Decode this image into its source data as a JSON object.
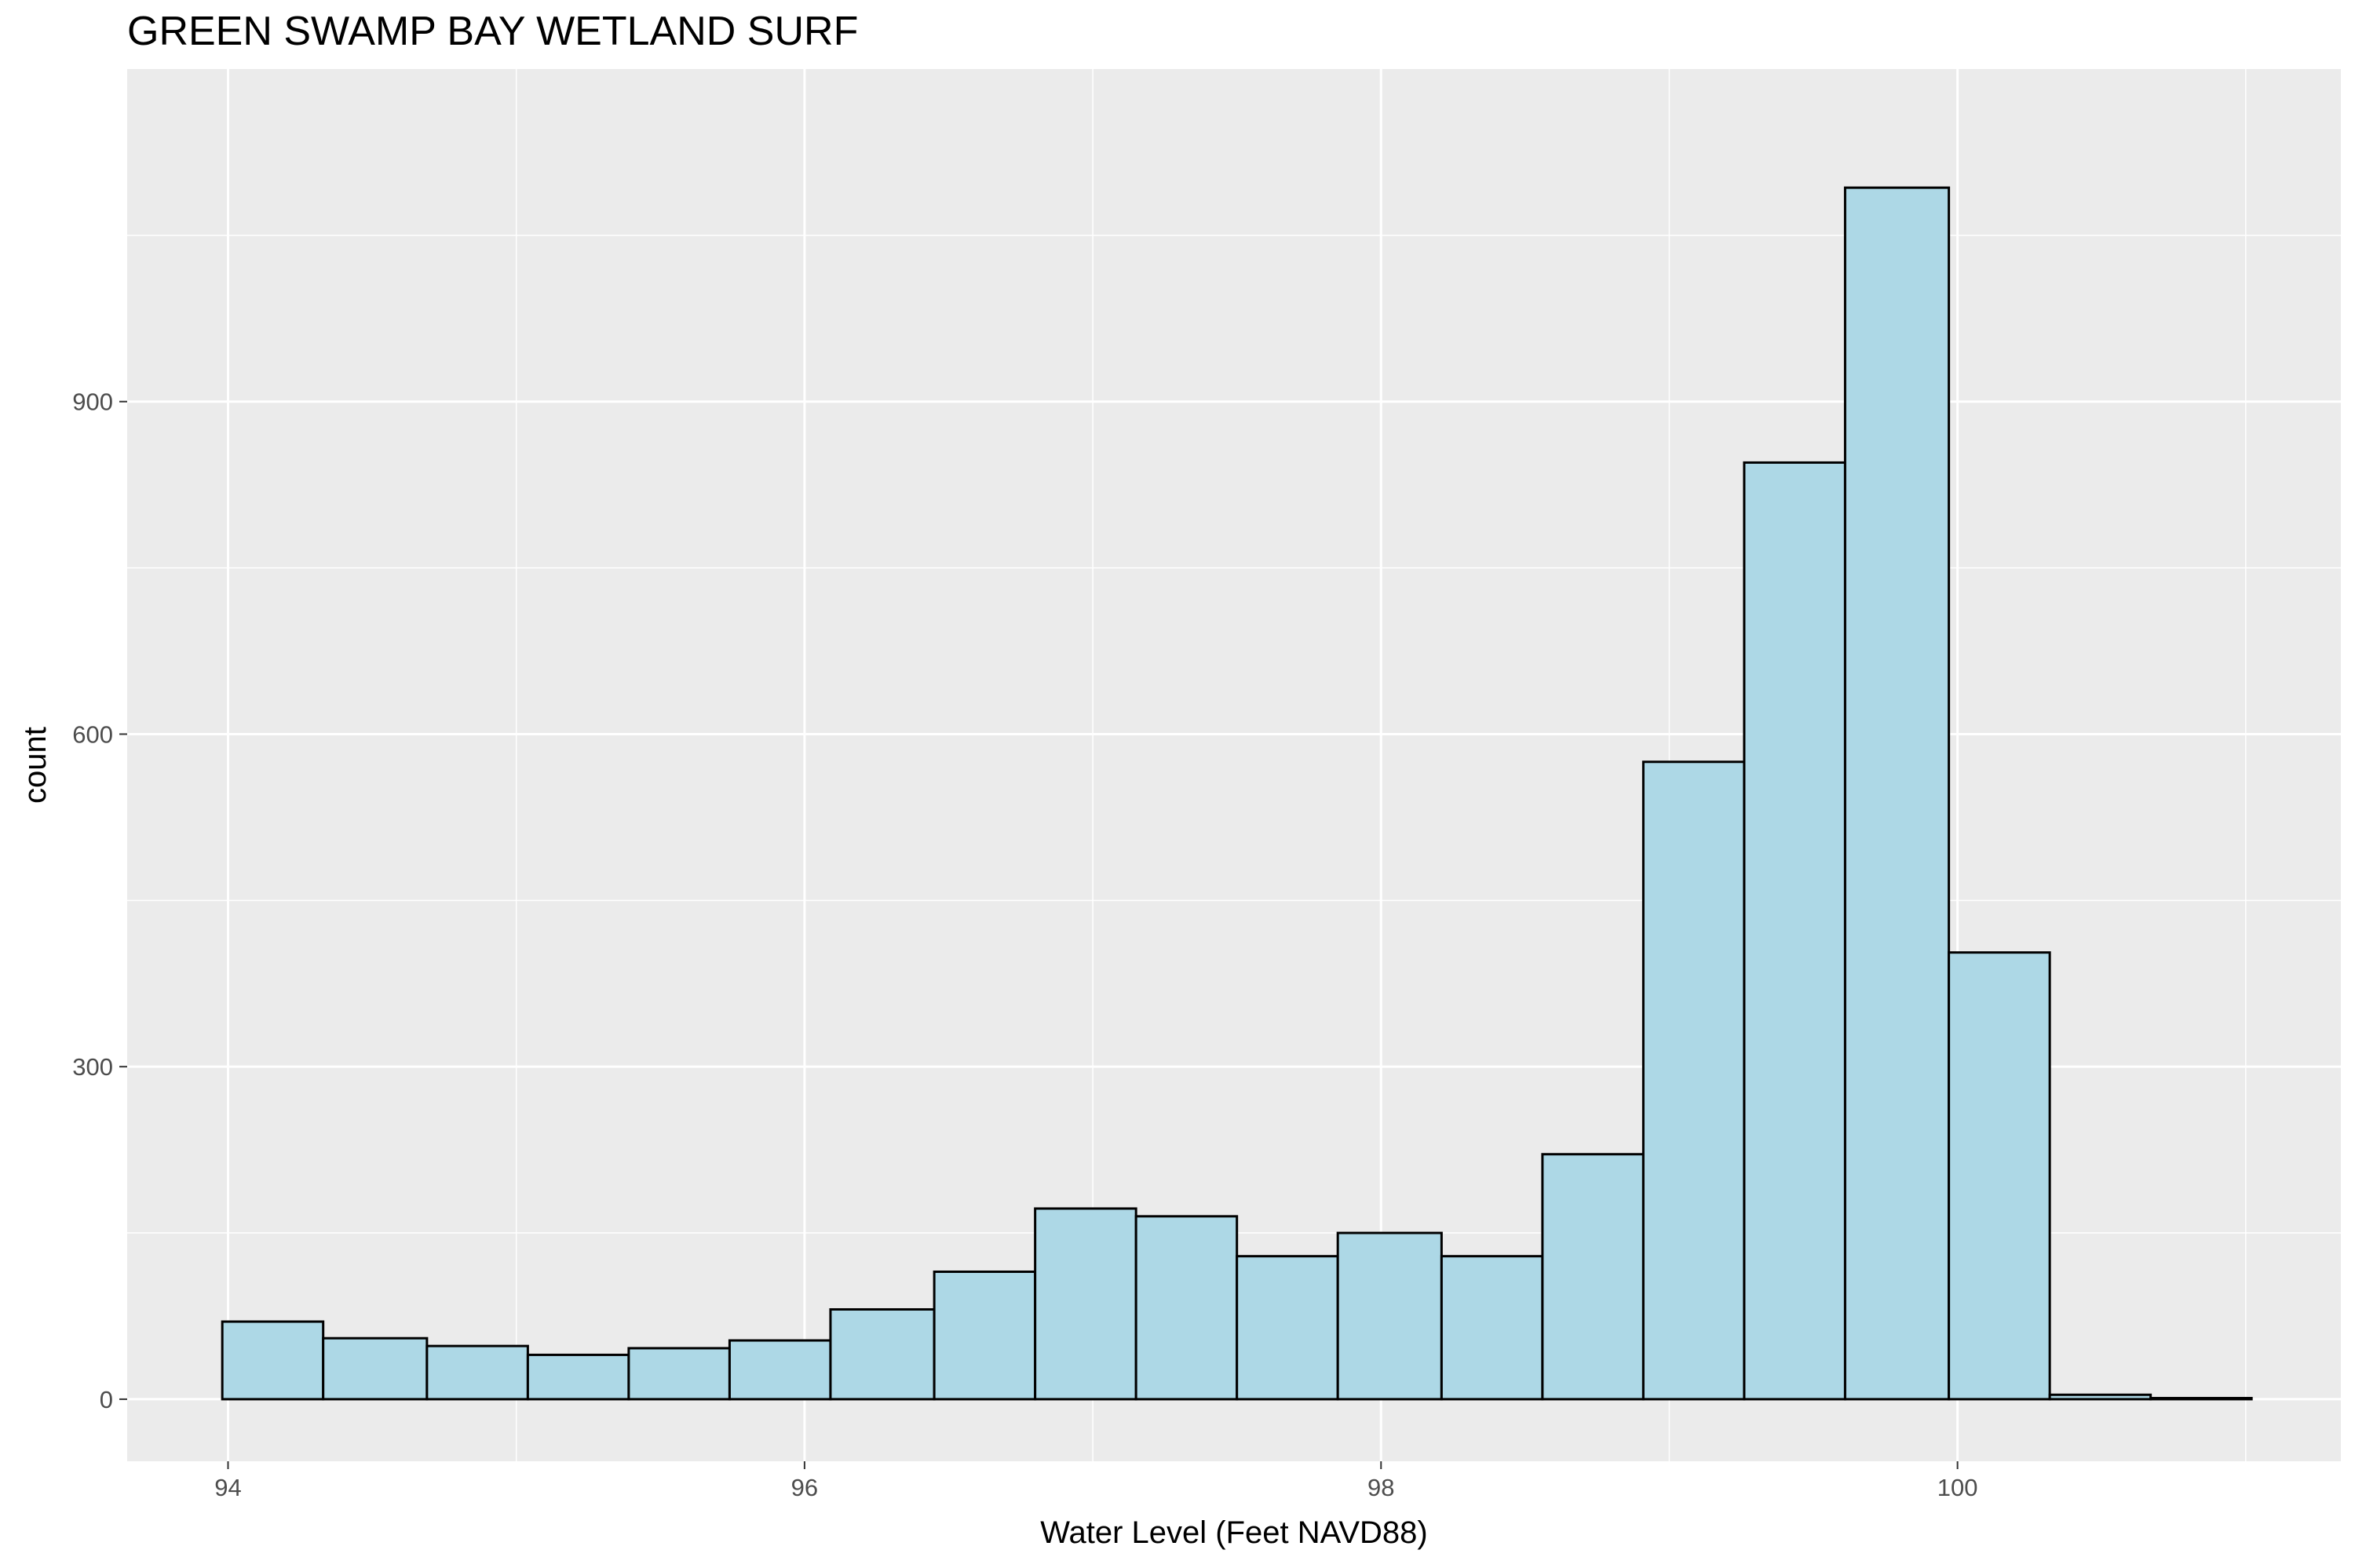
{
  "chart_data": {
    "type": "bar",
    "title": "GREEN SWAMP BAY WETLAND SURF",
    "xlabel": "Water Level (Feet NAVD88)",
    "ylabel": "count",
    "xlim": [
      93.65,
      101.33
    ],
    "ylim": [
      -56,
      1200
    ],
    "x_ticks": [
      94,
      96,
      98,
      100
    ],
    "x_tick_labels": [
      "94",
      "96",
      "98",
      "100"
    ],
    "y_ticks": [
      0,
      300,
      600,
      900
    ],
    "y_tick_labels": [
      "0",
      "300",
      "600",
      "900"
    ],
    "grid": true,
    "bins": [
      {
        "x0": 93.98,
        "x1": 94.33,
        "count": 70
      },
      {
        "x0": 94.33,
        "x1": 94.69,
        "count": 55
      },
      {
        "x0": 94.69,
        "x1": 95.04,
        "count": 48
      },
      {
        "x0": 95.04,
        "x1": 95.39,
        "count": 40
      },
      {
        "x0": 95.39,
        "x1": 95.74,
        "count": 46
      },
      {
        "x0": 95.74,
        "x1": 96.09,
        "count": 53
      },
      {
        "x0": 96.09,
        "x1": 96.45,
        "count": 81
      },
      {
        "x0": 96.45,
        "x1": 96.8,
        "count": 115
      },
      {
        "x0": 96.8,
        "x1": 97.15,
        "count": 172
      },
      {
        "x0": 97.15,
        "x1": 97.5,
        "count": 165
      },
      {
        "x0": 97.5,
        "x1": 97.85,
        "count": 129
      },
      {
        "x0": 97.85,
        "x1": 98.21,
        "count": 150
      },
      {
        "x0": 98.21,
        "x1": 98.56,
        "count": 129
      },
      {
        "x0": 98.56,
        "x1": 98.91,
        "count": 221
      },
      {
        "x0": 98.91,
        "x1": 99.26,
        "count": 575
      },
      {
        "x0": 99.26,
        "x1": 99.61,
        "count": 845
      },
      {
        "x0": 99.61,
        "x1": 99.97,
        "count": 1093
      },
      {
        "x0": 99.97,
        "x1": 100.32,
        "count": 403
      },
      {
        "x0": 100.32,
        "x1": 100.67,
        "count": 4
      },
      {
        "x0": 100.67,
        "x1": 101.02,
        "count": 1
      }
    ],
    "colors": {
      "panel": "#ebebeb",
      "grid_major": "#ffffff",
      "bar_fill": "#add8e6",
      "bar_stroke": "#000000",
      "tick": "#333333"
    }
  }
}
